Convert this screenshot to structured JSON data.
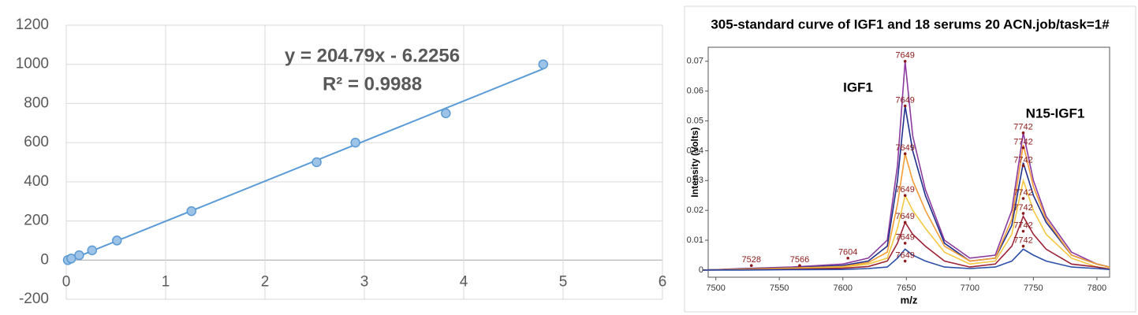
{
  "chart_data": [
    {
      "type": "scatter",
      "x": [
        0.016,
        0.05,
        0.13,
        0.26,
        0.51,
        1.26,
        2.52,
        2.91,
        3.82,
        4.8
      ],
      "values": [
        0,
        8,
        25,
        50,
        100,
        250,
        500,
        600,
        750,
        1000
      ],
      "color": "#5b9bd5",
      "xlim": [
        0,
        6
      ],
      "xticks": [
        0,
        1,
        2,
        3,
        4,
        5,
        6
      ],
      "ylim": [
        -200,
        1200
      ],
      "yticks": [
        -200,
        0,
        200,
        400,
        600,
        800,
        1000,
        1200
      ],
      "grid": true,
      "trendline": {
        "equation": "y = 204.79x - 6.2256",
        "r_squared": "R² = 0.9988",
        "slope": 204.79,
        "intercept": -6.2256
      }
    },
    {
      "type": "line",
      "title": "305-standard curve of IGF1 and 18 serums 20 ACN.job/task=1#",
      "x_label": "m/z",
      "y_label": "Intensity (Volts)",
      "x": [
        7490,
        7520,
        7560,
        7600,
        7620,
        7635,
        7643,
        7649,
        7655,
        7665,
        7680,
        7700,
        7720,
        7733,
        7742,
        7750,
        7760,
        7780,
        7800,
        7810
      ],
      "series": [
        {
          "color": "#8b3a9e",
          "values": [
            0,
            0.0005,
            0.001,
            0.002,
            0.004,
            0.01,
            0.035,
            0.07,
            0.045,
            0.027,
            0.01,
            0.004,
            0.005,
            0.02,
            0.046,
            0.03,
            0.018,
            0.006,
            0.002,
            0.001
          ]
        },
        {
          "color": "#1f2f8a",
          "values": [
            0,
            0.0004,
            0.0008,
            0.0015,
            0.003,
            0.008,
            0.03,
            0.055,
            0.04,
            0.025,
            0.009,
            0.003,
            0.004,
            0.015,
            0.036,
            0.025,
            0.016,
            0.005,
            0.002,
            0.001
          ]
        },
        {
          "color": "#f39c34",
          "values": [
            0,
            0.0003,
            0.0007,
            0.0012,
            0.0025,
            0.006,
            0.022,
            0.039,
            0.03,
            0.02,
            0.008,
            0.003,
            0.004,
            0.017,
            0.042,
            0.028,
            0.017,
            0.005,
            0.002,
            0.001
          ]
        },
        {
          "color": "#f5c842",
          "values": [
            0,
            0.0002,
            0.0005,
            0.001,
            0.002,
            0.004,
            0.014,
            0.025,
            0.02,
            0.014,
            0.006,
            0.002,
            0.003,
            0.012,
            0.03,
            0.02,
            0.012,
            0.004,
            0.001,
            0.0005
          ]
        },
        {
          "color": "#9b2335",
          "values": [
            0,
            0.0001,
            0.0003,
            0.0006,
            0.0012,
            0.003,
            0.009,
            0.016,
            0.012,
            0.008,
            0.003,
            0.001,
            0.002,
            0.008,
            0.018,
            0.012,
            0.007,
            0.002,
            0.001,
            0.0003
          ]
        },
        {
          "color": "#2b4fa8",
          "values": [
            0,
            0,
            0.0001,
            0.0002,
            0.0005,
            0.001,
            0.004,
            0.007,
            0.005,
            0.003,
            0.001,
            0.0005,
            0.001,
            0.003,
            0.007,
            0.005,
            0.003,
            0.001,
            0.0005,
            0.0002
          ]
        }
      ],
      "peak_labels": [
        {
          "x": 7649,
          "y": 0.07
        },
        {
          "x": 7649,
          "y": 0.055
        },
        {
          "x": 7649,
          "y": 0.039
        },
        {
          "x": 7649,
          "y": 0.025
        },
        {
          "x": 7649,
          "y": 0.016
        },
        {
          "x": 7649,
          "y": 0.009
        },
        {
          "x": 7649,
          "y": 0.003
        },
        {
          "x": 7742,
          "y": 0.046
        },
        {
          "x": 7742,
          "y": 0.041
        },
        {
          "x": 7742,
          "y": 0.035
        },
        {
          "x": 7742,
          "y": 0.024
        },
        {
          "x": 7742,
          "y": 0.019
        },
        {
          "x": 7742,
          "y": 0.013
        },
        {
          "x": 7742,
          "y": 0.008
        },
        {
          "x": 7528,
          "y": 0.0015
        },
        {
          "x": 7566,
          "y": 0.0015
        },
        {
          "x": 7604,
          "y": 0.004
        }
      ],
      "annotations": [
        "IGF1",
        "N15-IGF1"
      ],
      "xlim": [
        7494,
        7810
      ],
      "xticks": [
        7500,
        7550,
        7600,
        7650,
        7700,
        7750,
        7800
      ],
      "ylim": [
        -0.0024,
        0.0747
      ],
      "yticks": [
        0,
        0.01,
        0.02,
        0.03,
        0.04,
        0.05,
        0.06,
        0.07
      ]
    }
  ]
}
